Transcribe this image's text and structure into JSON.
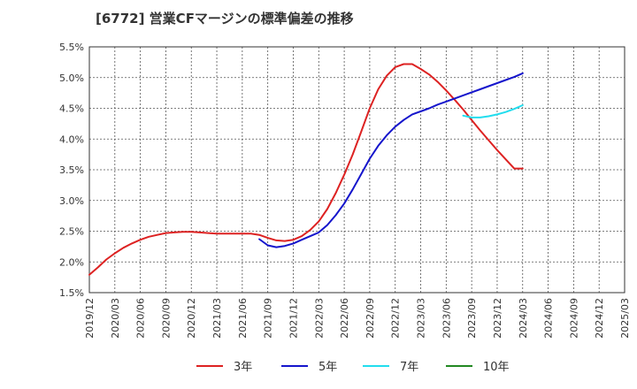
{
  "chart_data": {
    "type": "line",
    "title": "[6772]  営業CFマージンの標準偏差の推移",
    "xlabel": "",
    "ylabel": "",
    "ylim": [
      1.5,
      5.5
    ],
    "y_ticks": [
      "1.5%",
      "2.0%",
      "2.5%",
      "3.0%",
      "3.5%",
      "4.0%",
      "4.5%",
      "5.0%",
      "5.5%"
    ],
    "y_tick_values": [
      1.5,
      2.0,
      2.5,
      3.0,
      3.5,
      4.0,
      4.5,
      5.0,
      5.5
    ],
    "x_ticks": [
      "2019/12",
      "2020/03",
      "2020/06",
      "2020/09",
      "2020/12",
      "2021/03",
      "2021/06",
      "2021/09",
      "2021/12",
      "2022/03",
      "2022/06",
      "2022/09",
      "2022/12",
      "2023/03",
      "2023/06",
      "2023/09",
      "2023/12",
      "2024/03",
      "2024/06",
      "2024/09",
      "2024/12",
      "2025/03"
    ],
    "grid": true,
    "legend_position": "bottom",
    "series": [
      {
        "name": "3年",
        "color": "#dd2222",
        "x": [
          "2019/12",
          "2020/01",
          "2020/02",
          "2020/03",
          "2020/04",
          "2020/05",
          "2020/06",
          "2020/07",
          "2020/08",
          "2020/09",
          "2020/10",
          "2020/11",
          "2020/12",
          "2021/01",
          "2021/02",
          "2021/03",
          "2021/04",
          "2021/05",
          "2021/06",
          "2021/07",
          "2021/08",
          "2021/09",
          "2021/10",
          "2021/11",
          "2021/12",
          "2022/01",
          "2022/02",
          "2022/03",
          "2022/04",
          "2022/05",
          "2022/06",
          "2022/07",
          "2022/08",
          "2022/09",
          "2022/10",
          "2022/11",
          "2022/12",
          "2023/01",
          "2023/02",
          "2023/03",
          "2023/04",
          "2023/05",
          "2023/06",
          "2023/07",
          "2023/08",
          "2023/09",
          "2023/10",
          "2023/11",
          "2023/12",
          "2024/01",
          "2024/02",
          "2024/03"
        ],
        "values": [
          1.79,
          1.91,
          2.04,
          2.14,
          2.23,
          2.3,
          2.36,
          2.41,
          2.44,
          2.47,
          2.48,
          2.49,
          2.49,
          2.48,
          2.47,
          2.46,
          2.46,
          2.46,
          2.46,
          2.46,
          2.44,
          2.39,
          2.35,
          2.34,
          2.36,
          2.42,
          2.52,
          2.66,
          2.86,
          3.12,
          3.42,
          3.75,
          4.12,
          4.5,
          4.81,
          5.03,
          5.17,
          5.22,
          5.22,
          5.14,
          5.05,
          4.93,
          4.79,
          4.64,
          4.48,
          4.31,
          4.14,
          3.98,
          3.82,
          3.67,
          3.52,
          3.52
        ],
        "x_end": "2024/03",
        "note": ""
      },
      {
        "name": "5年",
        "color": "#1515cc",
        "x": [
          "2021/08",
          "2021/09",
          "2021/10",
          "2021/11",
          "2021/12",
          "2022/01",
          "2022/02",
          "2022/03",
          "2022/04",
          "2022/05",
          "2022/06",
          "2022/07",
          "2022/08",
          "2022/09",
          "2022/10",
          "2022/11",
          "2022/12",
          "2023/01",
          "2023/02",
          "2023/03",
          "2023/04",
          "2023/05",
          "2023/06",
          "2023/07",
          "2023/08",
          "2023/09",
          "2023/10",
          "2023/11",
          "2023/12",
          "2024/01",
          "2024/02",
          "2024/03"
        ],
        "values": [
          2.37,
          2.27,
          2.24,
          2.26,
          2.3,
          2.36,
          2.42,
          2.48,
          2.6,
          2.76,
          2.95,
          3.18,
          3.43,
          3.68,
          3.89,
          4.06,
          4.2,
          4.31,
          4.4,
          4.45,
          4.5,
          4.56,
          4.61,
          4.66,
          4.71,
          4.76,
          4.81,
          4.86,
          4.91,
          4.96,
          5.01,
          5.07
        ]
      },
      {
        "name": "7年",
        "color": "#22ddee",
        "x": [
          "2023/08",
          "2023/09",
          "2023/10",
          "2023/11",
          "2023/12",
          "2024/01",
          "2024/02",
          "2024/03"
        ],
        "values": [
          4.38,
          4.35,
          4.35,
          4.37,
          4.4,
          4.44,
          4.49,
          4.55
        ]
      },
      {
        "name": "10年",
        "color": "#228822",
        "x": [],
        "values": []
      }
    ]
  }
}
